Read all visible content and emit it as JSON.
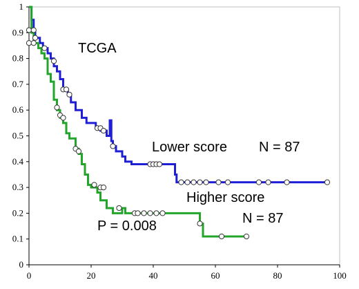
{
  "chart_data": {
    "type": "line",
    "title": "",
    "xlabel": "",
    "ylabel": "",
    "xlim": [
      0,
      100
    ],
    "ylim": [
      0,
      1
    ],
    "x_ticks": [
      0,
      20,
      40,
      60,
      80,
      100
    ],
    "y_ticks": [
      0,
      0.1,
      0.2,
      0.3,
      0.4,
      0.5,
      0.6,
      0.7,
      0.8,
      0.9,
      1
    ],
    "x_tick_labels": [
      "0",
      "20",
      "40",
      "60",
      "80",
      "100"
    ],
    "y_tick_labels": [
      "0",
      "0.1",
      "0.2",
      "0.3",
      "0.4",
      "0.5",
      "0.6",
      "0.7",
      "0.8",
      "0.9",
      "1"
    ],
    "grid": false,
    "series": [
      {
        "name": "Lower score",
        "color": "#1f1fd6",
        "steps": [
          [
            0,
            1.0
          ],
          [
            0.8,
            0.95
          ],
          [
            1.5,
            0.91
          ],
          [
            2,
            0.88
          ],
          [
            3.5,
            0.86
          ],
          [
            4.5,
            0.84
          ],
          [
            6,
            0.82
          ],
          [
            7,
            0.8
          ],
          [
            8,
            0.77
          ],
          [
            9,
            0.75
          ],
          [
            10,
            0.72
          ],
          [
            11,
            0.68
          ],
          [
            12.5,
            0.66
          ],
          [
            13.5,
            0.63
          ],
          [
            15,
            0.6
          ],
          [
            17,
            0.57
          ],
          [
            18.5,
            0.55
          ],
          [
            21.5,
            0.53
          ],
          [
            23,
            0.52
          ],
          [
            25,
            0.5
          ],
          [
            26,
            0.56
          ],
          [
            26.5,
            0.48
          ],
          [
            27,
            0.46
          ],
          [
            28,
            0.44
          ],
          [
            30,
            0.42
          ],
          [
            31,
            0.4
          ],
          [
            33,
            0.39
          ],
          [
            47,
            0.35
          ],
          [
            47.5,
            0.32
          ],
          [
            96,
            0.32
          ]
        ],
        "censored": [
          [
            0,
            0.91
          ],
          [
            1.5,
            0.91
          ],
          [
            2,
            0.88
          ],
          [
            5,
            0.84
          ],
          [
            8,
            0.79
          ],
          [
            11,
            0.68
          ],
          [
            12,
            0.68
          ],
          [
            13,
            0.66
          ],
          [
            22,
            0.53
          ],
          [
            23,
            0.53
          ],
          [
            24,
            0.52
          ],
          [
            27,
            0.46
          ],
          [
            39,
            0.39
          ],
          [
            40,
            0.39
          ],
          [
            41,
            0.39
          ],
          [
            42,
            0.39
          ],
          [
            49,
            0.32
          ],
          [
            51,
            0.32
          ],
          [
            53,
            0.32
          ],
          [
            55,
            0.32
          ],
          [
            57,
            0.32
          ],
          [
            61,
            0.32
          ],
          [
            64,
            0.32
          ],
          [
            74,
            0.32
          ],
          [
            77,
            0.32
          ],
          [
            83,
            0.32
          ],
          [
            96,
            0.32
          ]
        ]
      },
      {
        "name": "Higher score",
        "color": "#22a52a",
        "steps": [
          [
            0,
            1.0
          ],
          [
            0.8,
            0.9
          ],
          [
            1.5,
            0.86
          ],
          [
            3,
            0.84
          ],
          [
            4,
            0.82
          ],
          [
            5,
            0.8
          ],
          [
            6,
            0.74
          ],
          [
            7,
            0.71
          ],
          [
            8,
            0.64
          ],
          [
            9,
            0.6
          ],
          [
            10,
            0.57
          ],
          [
            11,
            0.55
          ],
          [
            12,
            0.51
          ],
          [
            13,
            0.49
          ],
          [
            15,
            0.45
          ],
          [
            16,
            0.43
          ],
          [
            17,
            0.39
          ],
          [
            18,
            0.35
          ],
          [
            19,
            0.31
          ],
          [
            20,
            0.3
          ],
          [
            22,
            0.28
          ],
          [
            23,
            0.25
          ],
          [
            25,
            0.22
          ],
          [
            27,
            0.2
          ],
          [
            30,
            0.22
          ],
          [
            31,
            0.2
          ],
          [
            55,
            0.16
          ],
          [
            56,
            0.11
          ],
          [
            70,
            0.11
          ]
        ],
        "censored": [
          [
            0,
            0.86
          ],
          [
            1.5,
            0.86
          ],
          [
            9,
            0.61
          ],
          [
            10,
            0.58
          ],
          [
            11,
            0.57
          ],
          [
            15,
            0.45
          ],
          [
            16,
            0.44
          ],
          [
            21,
            0.31
          ],
          [
            23,
            0.3
          ],
          [
            24,
            0.3
          ],
          [
            29,
            0.22
          ],
          [
            34,
            0.2
          ],
          [
            35,
            0.2
          ],
          [
            37,
            0.2
          ],
          [
            39,
            0.2
          ],
          [
            41,
            0.2
          ],
          [
            43,
            0.2
          ],
          [
            55,
            0.16
          ],
          [
            62,
            0.11
          ],
          [
            70,
            0.11
          ]
        ]
      }
    ],
    "annotations": {
      "cohort": "TCGA",
      "lower_label": "Lower score",
      "lower_n": "N = 87",
      "higher_label": "Higher score",
      "higher_n": "N = 87",
      "p_value": "P = 0.008"
    }
  }
}
